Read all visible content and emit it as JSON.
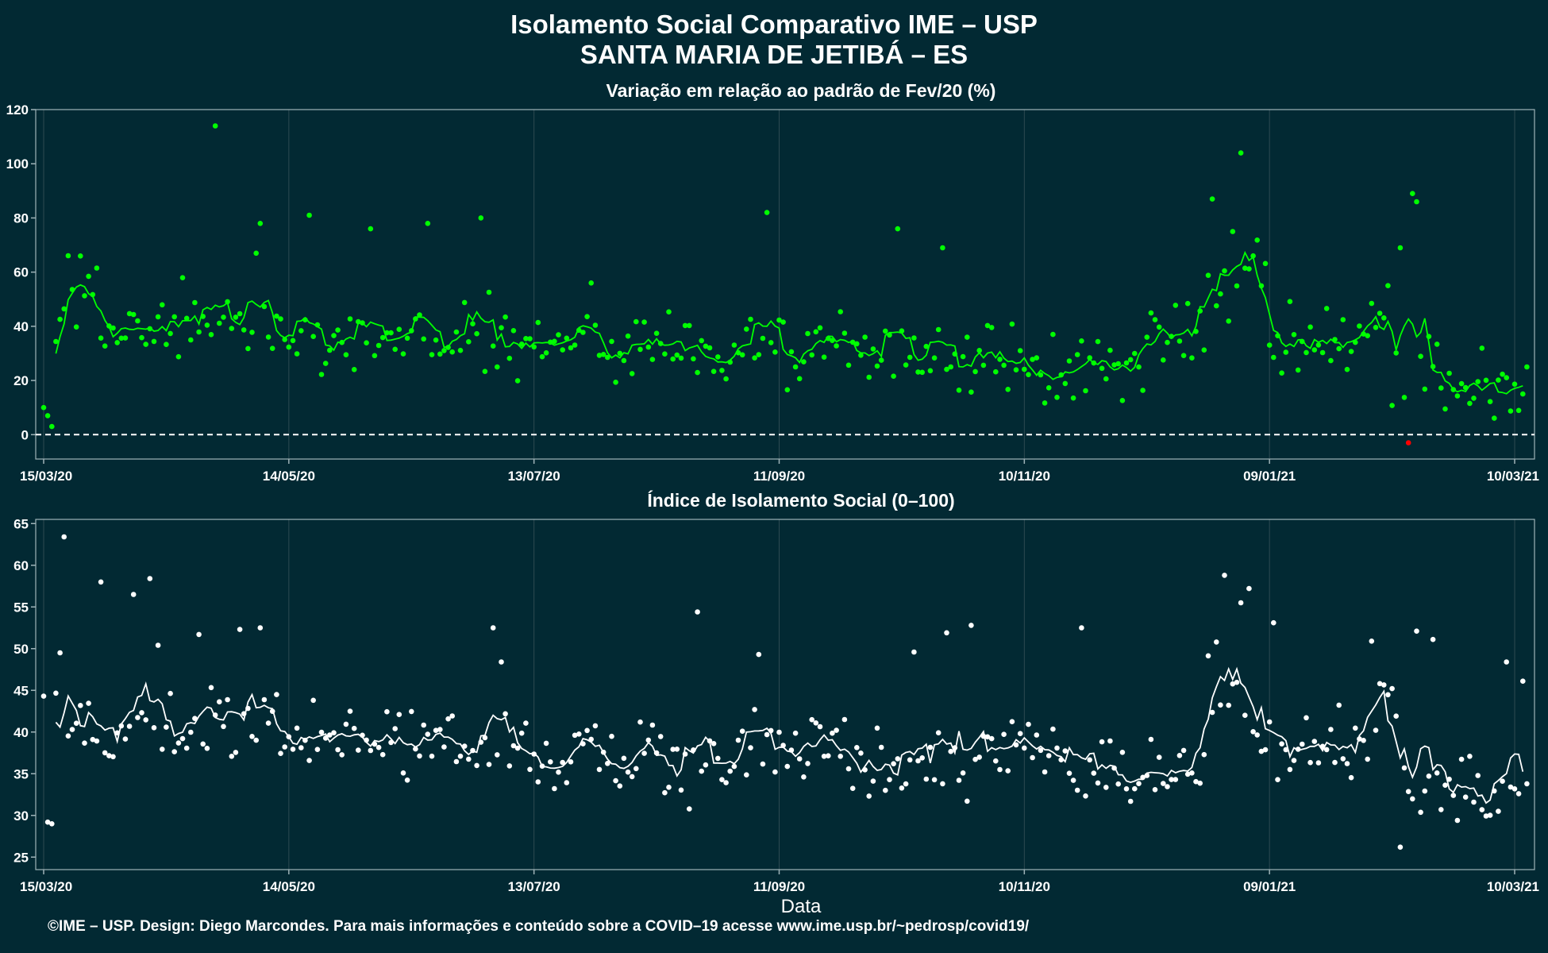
{
  "header": {
    "title_line1": "Isolamento Social Comparativo IME – USP",
    "title_line2": "SANTA MARIA DE JETIBÁ – ES"
  },
  "footer": "©IME – USP. Design: Diego Marcondes. Para mais informações e conteúdo sobre a COVID–19 acesse www.ime.usp.br/~pedrosp/covid19/",
  "colors": {
    "background": "#022933",
    "panel_border": "#9fb3b8",
    "grid": "#2d4a52",
    "top_series": "#00ff00",
    "top_negative": "#ff0000",
    "bottom_series": "#ffffff"
  },
  "chart_data": [
    {
      "type": "scatter",
      "title": "Variação em relação ao padrão de Fev/20 (%)",
      "xlabel": "",
      "ylabel": "",
      "x_ticks": [
        "15/03/20",
        "14/05/20",
        "13/07/20",
        "11/09/20",
        "10/11/20",
        "09/01/21",
        "10/03/21"
      ],
      "x_range": [
        "15/03/20",
        "10/03/21"
      ],
      "ylim": [
        -9,
        120
      ],
      "y_ticks": [
        0,
        20,
        40,
        60,
        80,
        100,
        120
      ],
      "reference_line": {
        "y": 0,
        "style": "dashed"
      },
      "moving_average_line": true,
      "outliers": [
        {
          "x": "26/04/20",
          "y": 114
        },
        {
          "x": "06/05/20",
          "y": 67
        },
        {
          "x": "07/05/20",
          "y": 78
        },
        {
          "x": "19/05/20",
          "y": 81
        },
        {
          "x": "03/06/20",
          "y": 76
        },
        {
          "x": "17/06/20",
          "y": 78
        },
        {
          "x": "30/06/20",
          "y": 80
        },
        {
          "x": "27/07/20",
          "y": 56
        },
        {
          "x": "08/09/20",
          "y": 82
        },
        {
          "x": "10/10/20",
          "y": 76
        },
        {
          "x": "21/10/20",
          "y": 69
        },
        {
          "x": "26/12/20",
          "y": 87
        },
        {
          "x": "31/12/20",
          "y": 75
        },
        {
          "x": "02/01/21",
          "y": 104
        },
        {
          "x": "05/01/21",
          "y": 66
        },
        {
          "x": "10/02/21",
          "y": 69
        },
        {
          "x": "12/02/21",
          "y": -3
        },
        {
          "x": "13/02/21",
          "y": 89
        },
        {
          "x": "14/02/21",
          "y": 86
        }
      ]
    },
    {
      "type": "scatter",
      "title": "Índice de Isolamento Social (0–100)",
      "xlabel": "Data",
      "ylabel": "",
      "x_ticks": [
        "15/03/20",
        "14/05/20",
        "13/07/20",
        "11/09/20",
        "10/11/20",
        "09/01/21",
        "10/03/21"
      ],
      "x_range": [
        "15/03/20",
        "10/03/21"
      ],
      "ylim": [
        23.5,
        65.5
      ],
      "y_ticks": [
        25,
        30,
        35,
        40,
        45,
        50,
        55,
        60,
        65
      ],
      "moving_average_line": true,
      "outliers": [
        {
          "x": "19/03/20",
          "y": 49.5
        },
        {
          "x": "20/03/20",
          "y": 63.4
        },
        {
          "x": "29/03/20",
          "y": 58
        },
        {
          "x": "06/04/20",
          "y": 56.5
        },
        {
          "x": "10/04/20",
          "y": 58.4
        },
        {
          "x": "12/04/20",
          "y": 50.4
        },
        {
          "x": "22/04/20",
          "y": 51.7
        },
        {
          "x": "02/05/20",
          "y": 52.3
        },
        {
          "x": "07/05/20",
          "y": 52.5
        },
        {
          "x": "03/07/20",
          "y": 52.5
        },
        {
          "x": "05/07/20",
          "y": 48.4
        },
        {
          "x": "22/08/20",
          "y": 54.4
        },
        {
          "x": "06/09/20",
          "y": 49.3
        },
        {
          "x": "14/10/20",
          "y": 49.6
        },
        {
          "x": "22/10/20",
          "y": 51.9
        },
        {
          "x": "28/10/20",
          "y": 52.8
        },
        {
          "x": "24/11/20",
          "y": 52.5
        },
        {
          "x": "27/12/20",
          "y": 50.8
        },
        {
          "x": "29/12/20",
          "y": 58.8
        },
        {
          "x": "02/01/21",
          "y": 55.5
        },
        {
          "x": "04/01/21",
          "y": 57.2
        },
        {
          "x": "10/01/21",
          "y": 53.1
        },
        {
          "x": "03/02/21",
          "y": 50.9
        },
        {
          "x": "08/02/21",
          "y": 45.2
        },
        {
          "x": "10/02/21",
          "y": 26.2
        },
        {
          "x": "14/02/21",
          "y": 52.1
        },
        {
          "x": "18/02/21",
          "y": 51.1
        },
        {
          "x": "08/03/21",
          "y": 48.4
        },
        {
          "x": "13/03/21",
          "y": 46.1
        }
      ]
    }
  ]
}
